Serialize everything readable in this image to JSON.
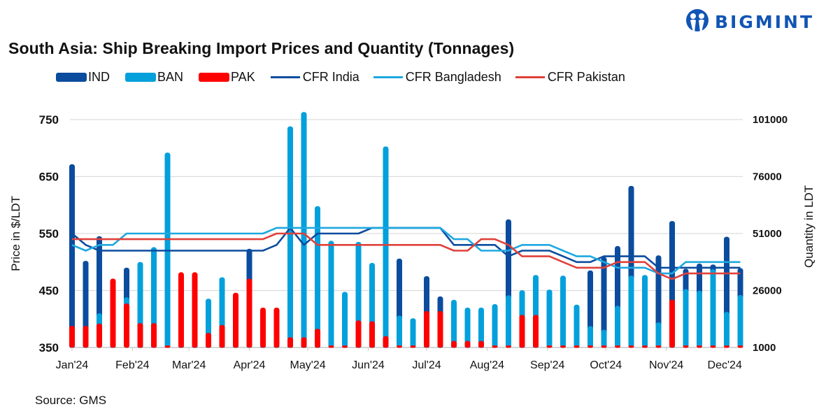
{
  "logo": {
    "text": "BIGMINT",
    "color": "#1155b5"
  },
  "source": "Source: GMS",
  "chart_data": {
    "type": "bar+line",
    "title": "South Asia: Ship Breaking Import Prices and Quantity (Tonnages)",
    "ylabel": "Price in $/LDT",
    "y2label": "Quantity in LDT",
    "ylim": [
      350,
      750
    ],
    "yticks": [
      350,
      450,
      550,
      650,
      750
    ],
    "y2lim": [
      1000,
      101000
    ],
    "y2ticks": [
      1000,
      26000,
      51000,
      76000,
      101000
    ],
    "grid": true,
    "legend_position": "top",
    "x_tick_labels": [
      {
        "date": "2024-01-01",
        "label": "Jan'24"
      },
      {
        "date": "2024-02-01",
        "label": "Feb'24"
      },
      {
        "date": "2024-03-01",
        "label": "Mar'24"
      },
      {
        "date": "2024-04-01",
        "label": "Apr'24"
      },
      {
        "date": "2024-05-01",
        "label": "May'24"
      },
      {
        "date": "2024-06-01",
        "label": "Jun'24"
      },
      {
        "date": "2024-07-01",
        "label": "Jul'24"
      },
      {
        "date": "2024-08-01",
        "label": "Aug'24"
      },
      {
        "date": "2024-09-01",
        "label": "Sep'24"
      },
      {
        "date": "2024-10-01",
        "label": "Oct'24"
      },
      {
        "date": "2024-11-01",
        "label": "Nov'24"
      },
      {
        "date": "2024-12-01",
        "label": "Dec'24"
      }
    ],
    "x": [
      "2024-01-01",
      "2024-01-08",
      "2024-01-15",
      "2024-01-22",
      "2024-01-29",
      "2024-02-05",
      "2024-02-12",
      "2024-02-19",
      "2024-02-26",
      "2024-03-04",
      "2024-03-11",
      "2024-03-18",
      "2024-03-25",
      "2024-04-01",
      "2024-04-08",
      "2024-04-15",
      "2024-04-22",
      "2024-04-29",
      "2024-05-06",
      "2024-05-13",
      "2024-05-20",
      "2024-05-27",
      "2024-06-03",
      "2024-06-10",
      "2024-06-17",
      "2024-06-24",
      "2024-07-01",
      "2024-07-08",
      "2024-07-15",
      "2024-07-22",
      "2024-07-29",
      "2024-08-05",
      "2024-08-12",
      "2024-08-19",
      "2024-08-26",
      "2024-09-02",
      "2024-09-09",
      "2024-09-16",
      "2024-09-23",
      "2024-09-30",
      "2024-10-07",
      "2024-10-14",
      "2024-10-21",
      "2024-10-28",
      "2024-11-04",
      "2024-11-11",
      "2024-11-18",
      "2024-11-25",
      "2024-12-02",
      "2024-12-09"
    ],
    "bar_series": [
      {
        "name": "IND",
        "color": "#0b4c9e",
        "axis": "right",
        "values": [
          81400,
          39000,
          49800,
          0,
          36000,
          0,
          0,
          0,
          0,
          0,
          0,
          0,
          0,
          44300,
          0,
          0,
          0,
          0,
          0,
          0,
          0,
          0,
          0,
          0,
          40000,
          0,
          32300,
          23400,
          0,
          0,
          0,
          0,
          57200,
          0,
          0,
          0,
          0,
          0,
          34800,
          40700,
          45500,
          71900,
          0,
          41400,
          56500,
          35500,
          37800,
          37400,
          49600,
          35800
        ]
      },
      {
        "name": "BAN",
        "color": "#03a0dc",
        "axis": "right",
        "values": [
          0,
          0,
          16000,
          0,
          23000,
          38500,
          45000,
          86500,
          0,
          0,
          22400,
          31800,
          0,
          0,
          0,
          0,
          98000,
          104300,
          63000,
          47800,
          25400,
          47300,
          38100,
          89200,
          15000,
          13800,
          0,
          0,
          21900,
          18500,
          18500,
          20000,
          23900,
          26100,
          32800,
          26400,
          32500,
          19800,
          10400,
          8800,
          19300,
          32500,
          32800,
          12000,
          0,
          26600,
          25900,
          35300,
          16600,
          24000
        ]
      },
      {
        "name": "PAK",
        "color": "#ff0000",
        "axis": "right",
        "values": [
          10500,
          10500,
          11500,
          31200,
          20300,
          11700,
          11700,
          0,
          34000,
          34000,
          7400,
          10900,
          25000,
          31200,
          18500,
          18500,
          5500,
          5500,
          9200,
          0,
          0,
          12900,
          12500,
          6000,
          0,
          0,
          17000,
          17000,
          3900,
          3900,
          3900,
          0,
          0,
          15300,
          15300,
          0,
          0,
          0,
          0,
          0,
          0,
          0,
          0,
          0,
          22000,
          0,
          0,
          0,
          0,
          0
        ]
      }
    ],
    "line_series": [
      {
        "name": "CFR India",
        "color": "#0b4c9e",
        "axis": "left",
        "values": [
          550,
          530,
          520,
          520,
          520,
          520,
          520,
          520,
          520,
          520,
          520,
          520,
          520,
          520,
          520,
          530,
          560,
          530,
          550,
          550,
          550,
          550,
          560,
          560,
          560,
          560,
          560,
          560,
          530,
          530,
          530,
          530,
          510,
          520,
          520,
          520,
          510,
          500,
          500,
          510,
          510,
          510,
          510,
          490,
          490,
          490,
          490,
          490,
          490,
          490
        ]
      },
      {
        "name": "CFR Bangladesh",
        "color": "#1ea8e0",
        "axis": "left",
        "values": [
          530,
          520,
          530,
          530,
          550,
          550,
          550,
          550,
          550,
          550,
          550,
          550,
          550,
          550,
          550,
          560,
          560,
          560,
          560,
          560,
          560,
          560,
          560,
          560,
          560,
          560,
          560,
          560,
          540,
          540,
          520,
          520,
          520,
          530,
          530,
          530,
          520,
          510,
          510,
          500,
          490,
          490,
          490,
          480,
          480,
          500,
          500,
          500,
          500,
          500
        ]
      },
      {
        "name": "CFR Pakistan",
        "color": "#e0403a",
        "axis": "left",
        "values": [
          540,
          540,
          540,
          540,
          540,
          540,
          540,
          540,
          540,
          540,
          540,
          540,
          540,
          540,
          540,
          550,
          550,
          550,
          530,
          530,
          530,
          530,
          530,
          530,
          530,
          530,
          530,
          530,
          520,
          520,
          540,
          540,
          530,
          510,
          510,
          510,
          500,
          490,
          490,
          490,
          500,
          500,
          500,
          480,
          470,
          480,
          480,
          480,
          480,
          480
        ]
      }
    ]
  }
}
